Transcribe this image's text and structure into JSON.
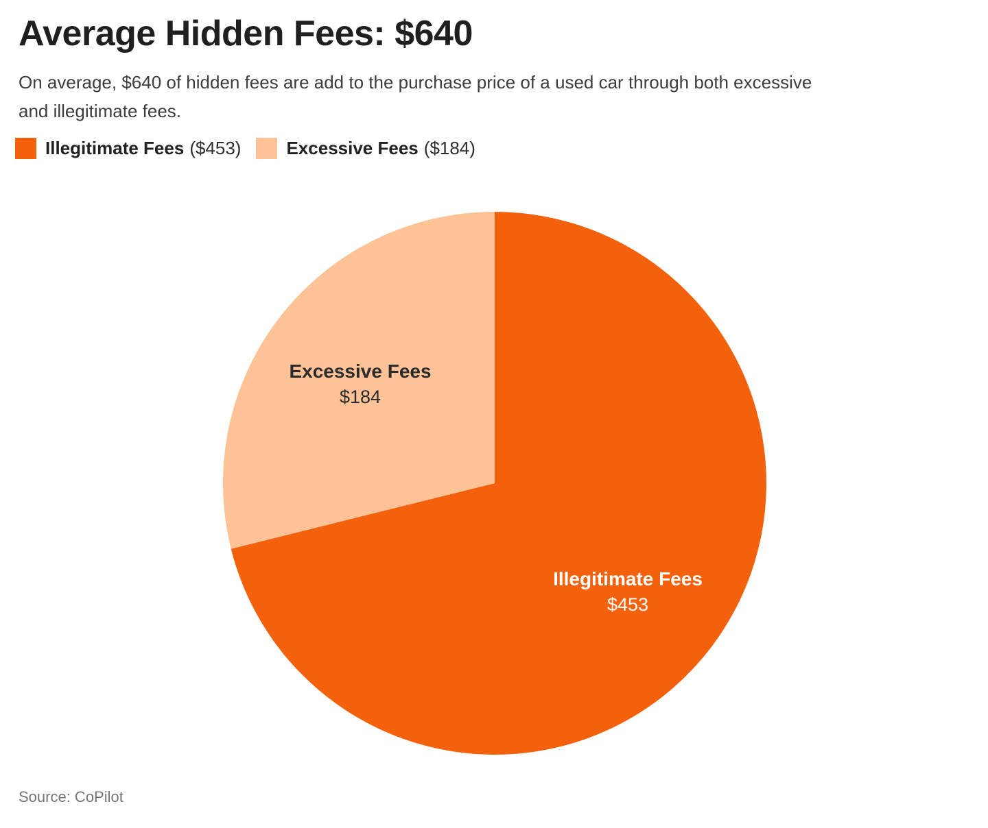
{
  "header": {
    "title": "Average Hidden Fees: $640",
    "subtitle_lines": [
      "On average, $640 of hidden fees are add to the purchase price of a used car through both excessive",
      "and illegitimate fees."
    ]
  },
  "legend": {
    "items": [
      {
        "label": "Illegitimate Fees",
        "value_text": "($453)",
        "color": "#f4610d"
      },
      {
        "label": "Excessive Fees",
        "value_text": "($184)",
        "color": "#fdc397"
      }
    ]
  },
  "chart_data": {
    "type": "pie",
    "title": "Average Hidden Fees: $640",
    "total_text": "$640",
    "start_angle_deg": 0,
    "direction": "clockwise",
    "legend_position": "top-left",
    "slices": [
      {
        "label": "Illegitimate Fees",
        "value": 453,
        "value_text": "$453",
        "color": "#f4610d",
        "label_color": "#ffffff"
      },
      {
        "label": "Excessive Fees",
        "value": 184,
        "value_text": "$184",
        "color": "#fdc397",
        "label_color": "#2b2b2b"
      }
    ]
  },
  "source": {
    "text": "Source: CoPilot"
  }
}
